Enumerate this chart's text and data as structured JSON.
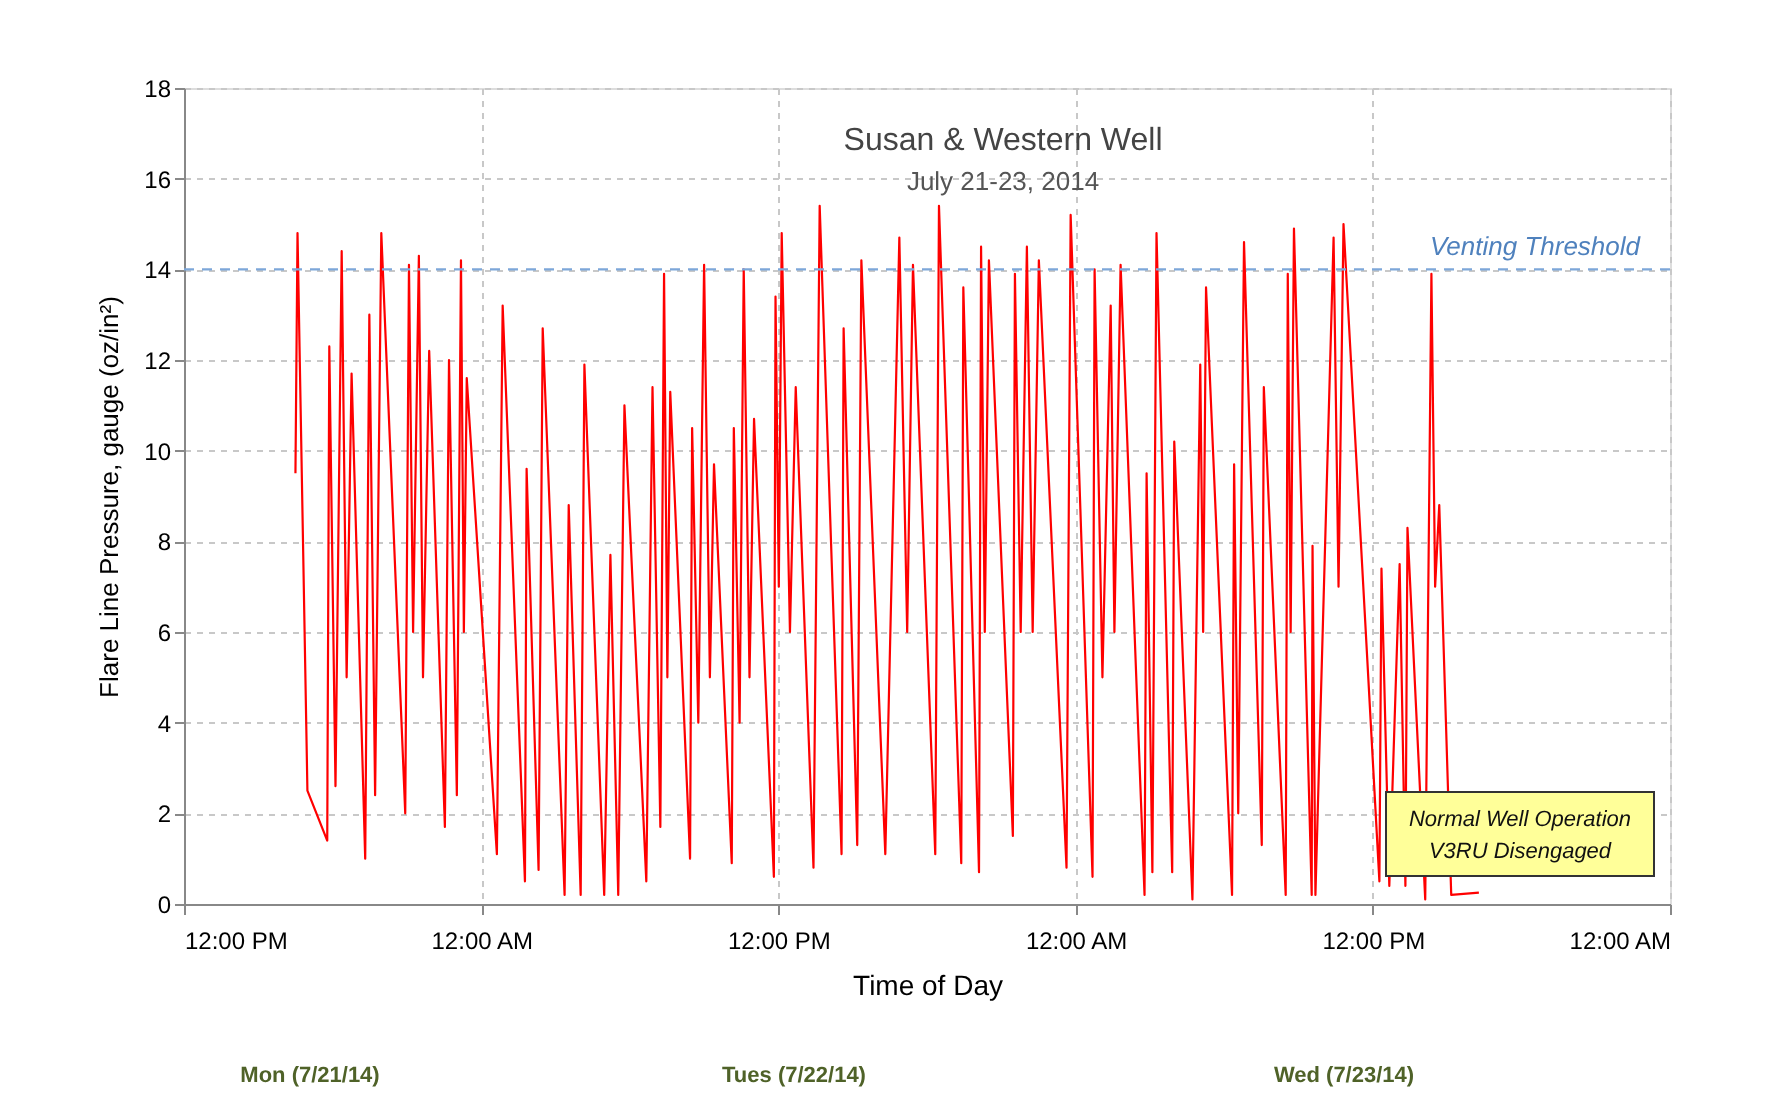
{
  "chart_data": {
    "type": "line",
    "title": "Susan & Western Well",
    "subtitle": "July 21-23, 2014",
    "xlabel": "Time of Day",
    "ylabel": "Flare Line Pressure, gauge (oz/in²)",
    "x": [
      "2014-07-21T16:30",
      "2014-07-21T16:35",
      "2014-07-21T16:59",
      "2014-07-21T17:47",
      "2014-07-21T17:52",
      "2014-07-21T18:07",
      "2014-07-21T18:22",
      "2014-07-21T18:34",
      "2014-07-21T18:46",
      "2014-07-21T19:19",
      "2014-07-21T19:29",
      "2014-07-21T19:43",
      "2014-07-21T19:58",
      "2014-07-21T20:56",
      "2014-07-21T21:05",
      "2014-07-21T21:15",
      "2014-07-21T21:29",
      "2014-07-21T21:39",
      "2014-07-21T21:54",
      "2014-07-21T22:32",
      "2014-07-21T22:42",
      "2014-07-21T23:01",
      "2014-07-21T23:11",
      "2014-07-21T23:18",
      "2014-07-21T23:25",
      "2014-07-22T00:38",
      "2014-07-22T00:52",
      "2014-07-22T01:46",
      "2014-07-22T01:50",
      "2014-07-22T02:19",
      "2014-07-22T02:29",
      "2014-07-22T03:22",
      "2014-07-22T03:32",
      "2014-07-22T04:01",
      "2014-07-22T04:10",
      "2014-07-22T04:58",
      "2014-07-22T05:13",
      "2014-07-22T05:32",
      "2014-07-22T05:47",
      "2014-07-22T06:40",
      "2014-07-22T06:55",
      "2014-07-22T07:14",
      "2014-07-22T07:23",
      "2014-07-22T07:31",
      "2014-07-22T07:38",
      "2014-07-22T08:26",
      "2014-07-22T08:31",
      "2014-07-22T08:46",
      "2014-07-22T09:00",
      "2014-07-22T09:14",
      "2014-07-22T09:24",
      "2014-07-22T10:07",
      "2014-07-22T10:12",
      "2014-07-22T10:26",
      "2014-07-22T10:36",
      "2014-07-22T10:50",
      "2014-07-22T11:01",
      "2014-07-22T11:49",
      "2014-07-22T11:53",
      "2014-07-22T12:01",
      "2014-07-22T12:08",
      "2014-07-22T12:28",
      "2014-07-22T12:42",
      "2014-07-22T13:25",
      "2014-07-22T13:40",
      "2014-07-22T14:33",
      "2014-07-22T14:38",
      "2014-07-22T15:11",
      "2014-07-22T15:21",
      "2014-07-22T16:19",
      "2014-07-22T16:53",
      "2014-07-22T17:12",
      "2014-07-22T17:26",
      "2014-07-22T18:20",
      "2014-07-22T18:29",
      "2014-07-22T19:23",
      "2014-07-22T19:28",
      "2014-07-22T20:06",
      "2014-07-22T20:11",
      "2014-07-22T20:20",
      "2014-07-22T20:30",
      "2014-07-22T21:28",
      "2014-07-22T21:33",
      "2014-07-22T21:47",
      "2014-07-22T22:02",
      "2014-07-22T22:16",
      "2014-07-22T22:31",
      "2014-07-22T23:38",
      "2014-07-22T23:48",
      "2014-07-23T00:41",
      "2014-07-23T00:46",
      "2014-07-23T01:05",
      "2014-07-23T01:25",
      "2014-07-23T01:34",
      "2014-07-23T01:49",
      "2014-07-23T02:47",
      "2014-07-23T02:52",
      "2014-07-23T03:06",
      "2014-07-23T03:16",
      "2014-07-23T03:54",
      "2014-07-23T03:59",
      "2014-07-23T04:43",
      "2014-07-23T05:02",
      "2014-07-23T05:09",
      "2014-07-23T05:16",
      "2014-07-23T06:19",
      "2014-07-23T06:24",
      "2014-07-23T06:34",
      "2014-07-23T06:48",
      "2014-07-23T07:31",
      "2014-07-23T07:36",
      "2014-07-23T08:29",
      "2014-07-23T08:34",
      "2014-07-23T08:41",
      "2014-07-23T08:49",
      "2014-07-23T09:32",
      "2014-07-23T09:34",
      "2014-07-23T09:41",
      "2014-07-23T10:25",
      "2014-07-23T10:37",
      "2014-07-23T10:49",
      "2014-07-23T12:16",
      "2014-07-23T12:21",
      "2014-07-23T12:40",
      "2014-07-23T13:05",
      "2014-07-23T13:19",
      "2014-07-23T13:24",
      "2014-07-23T14:07",
      "2014-07-23T14:22",
      "2014-07-23T14:31",
      "2014-07-23T14:41",
      "2014-07-23T15:10",
      "2014-07-23T16:17"
    ],
    "series": [
      {
        "color": "#ff0000",
        "values": [
          9.5,
          14.8,
          2.5,
          1.4,
          12.3,
          2.6,
          14.4,
          5,
          11.7,
          1.0,
          13.0,
          2.4,
          14.8,
          2.0,
          14.1,
          6,
          14.3,
          5,
          12.2,
          1.7,
          12.0,
          2.4,
          14.2,
          6,
          11.6,
          1.1,
          13.2,
          0.5,
          9.6,
          0.75,
          12.7,
          0.2,
          8.8,
          0.2,
          11.9,
          0.2,
          7.7,
          0.2,
          11.0,
          0.5,
          11.4,
          1.7,
          13.9,
          5,
          11.3,
          1.0,
          10.5,
          4,
          14.1,
          5,
          9.7,
          0.9,
          10.5,
          4,
          14.0,
          5,
          10.7,
          0.6,
          13.4,
          7,
          14.8,
          6,
          11.4,
          0.8,
          15.4,
          1.1,
          12.7,
          1.3,
          14.2,
          1.1,
          14.7,
          6,
          14.1,
          1.1,
          15.4,
          0.9,
          13.6,
          0.7,
          14.5,
          6,
          14.2,
          1.5,
          13.9,
          6,
          14.5,
          6,
          14.2,
          0.8,
          15.2,
          0.6,
          14.0,
          5,
          13.2,
          6,
          14.1,
          0.2,
          9.5,
          0.7,
          14.8,
          0.7,
          10.2,
          0.1,
          11.9,
          6,
          13.6,
          0.2,
          9.7,
          2,
          14.6,
          1.3,
          11.4,
          0.2,
          13.9,
          6,
          14.9,
          0.2,
          7.9,
          0.2,
          14.7,
          7,
          15.0,
          0.5,
          7.4,
          0.4,
          7.5,
          0.4,
          8.3,
          0.1,
          13.9,
          7,
          8.8,
          0.2,
          0.25
        ]
      }
    ],
    "xlim": [
      "2014-07-21T12:00",
      "2014-07-24T00:00"
    ],
    "xticks": [
      {
        "value": "2014-07-21T12:00",
        "label": "12:00 PM"
      },
      {
        "value": "2014-07-22T00:00",
        "label": "12:00 AM"
      },
      {
        "value": "2014-07-22T12:00",
        "label": "12:00 PM"
      },
      {
        "value": "2014-07-23T00:00",
        "label": "12:00 AM"
      },
      {
        "value": "2014-07-23T12:00",
        "label": "12:00 PM"
      },
      {
        "value": "2014-07-24T00:00",
        "label": "12:00 AM"
      }
    ],
    "ylim": [
      0,
      18
    ],
    "yticks": [
      0,
      2,
      4,
      6,
      8,
      10,
      12,
      14,
      16,
      18
    ],
    "grid": true,
    "line_style": "solid",
    "ref_lines": [
      {
        "axis": "y",
        "value": 14,
        "label": "Venting Threshold",
        "color": "#7da7d9",
        "line_style": "dashed"
      }
    ],
    "annotations": [
      "Normal Well Operation\nV3RU Disengaged",
      "Mon (7/21/14)",
      "Tues (7/22/14)",
      "Wed (7/23/14)"
    ]
  }
}
